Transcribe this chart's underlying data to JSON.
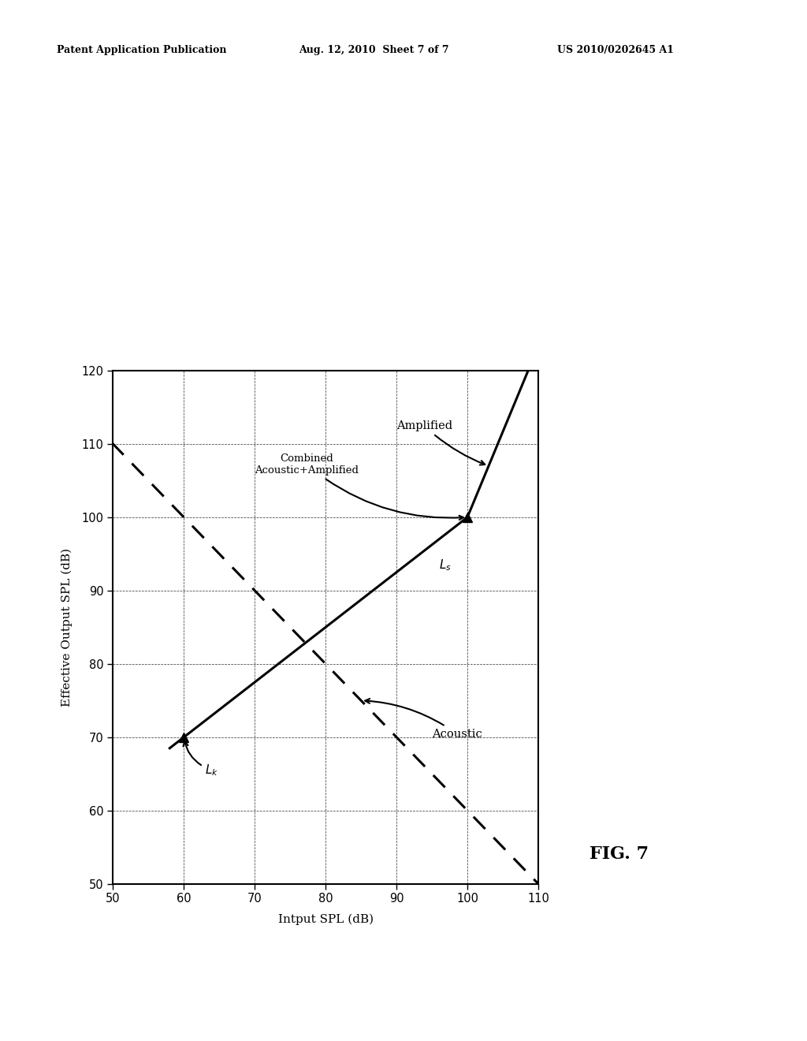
{
  "header_left": "Patent Application Publication",
  "header_middle": "Aug. 12, 2010  Sheet 7 of 7",
  "header_right": "US 2010/0202645 A1",
  "fig_label": "FIG. 7",
  "input_label": "Intput SPL (dB)",
  "output_label": "Effective Output SPL (dB)",
  "input_range": [
    50,
    110
  ],
  "output_range": [
    50,
    120
  ],
  "input_ticks": [
    50,
    60,
    70,
    80,
    90,
    100,
    110
  ],
  "output_ticks": [
    50,
    60,
    70,
    80,
    90,
    100,
    110,
    120
  ],
  "background_color": "#ffffff",
  "acoustic_label": "Acoustic",
  "amplified_label": "Amplified",
  "combined_label": "Combined\nAcoustic+Amplified",
  "Ls_label": "L_s",
  "Lk_label": "L_k",
  "note": "Chart is rotated 90deg CW in target. x=Input SPL (right side, vertical), y=Output SPL (bottom, reversed). Acoustic line: dashed diagonal from (in=50,out=110) to (in=110,out=50). Combined line: solid, two segments meeting at Ls=(in=100,out=100). Above Ls: steep slope to (in=103,out=110). Below Ls: very steep to (in=60,out=70) and continues to edge. Lk at ~(in=60,out=70)."
}
